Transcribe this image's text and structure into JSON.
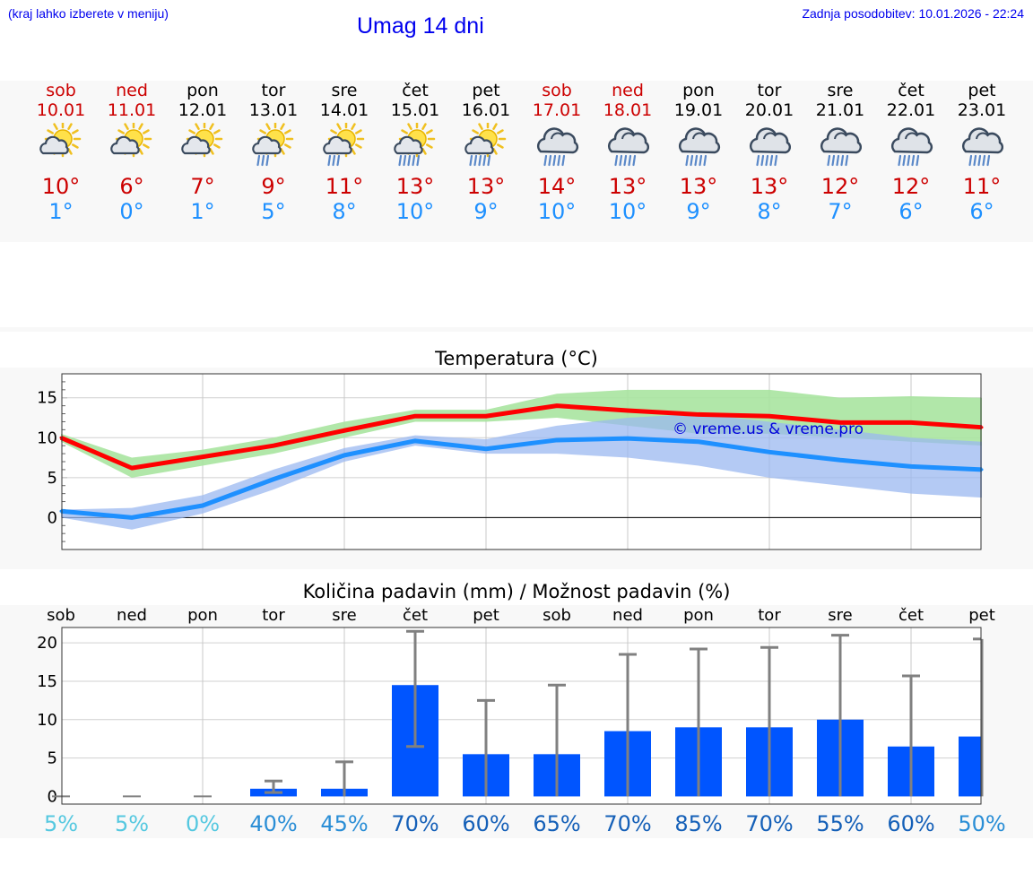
{
  "header": {
    "menu_hint": "(kraj lahko izberete v meniju)",
    "title": "Umag 14 dni",
    "last_update": "Zadnja posodobitev: 10.01.2026 - 22:24"
  },
  "forecast": [
    {
      "day": "sob",
      "date": "10.01",
      "icon": "sun-cloud-icon",
      "tmax": "10°",
      "tmin": "1°",
      "weekend": true
    },
    {
      "day": "ned",
      "date": "11.01",
      "icon": "sun-cloud-icon",
      "tmax": "6°",
      "tmin": "0°",
      "weekend": true
    },
    {
      "day": "pon",
      "date": "12.01",
      "icon": "sun-cloud-icon",
      "tmax": "7°",
      "tmin": "1°",
      "weekend": false
    },
    {
      "day": "tor",
      "date": "13.01",
      "icon": "sun-rain-icon",
      "tmax": "9°",
      "tmin": "5°",
      "weekend": false
    },
    {
      "day": "sre",
      "date": "14.01",
      "icon": "sun-rain-icon",
      "tmax": "11°",
      "tmin": "8°",
      "weekend": false
    },
    {
      "day": "čet",
      "date": "15.01",
      "icon": "sun-heavy-rain-icon",
      "tmax": "13°",
      "tmin": "10°",
      "weekend": false
    },
    {
      "day": "pet",
      "date": "16.01",
      "icon": "sun-heavy-rain-icon",
      "tmax": "13°",
      "tmin": "9°",
      "weekend": false
    },
    {
      "day": "sob",
      "date": "17.01",
      "icon": "rain-cloud-icon",
      "tmax": "14°",
      "tmin": "10°",
      "weekend": true
    },
    {
      "day": "ned",
      "date": "18.01",
      "icon": "rain-cloud-icon",
      "tmax": "13°",
      "tmin": "10°",
      "weekend": true
    },
    {
      "day": "pon",
      "date": "19.01",
      "icon": "rain-cloud-icon",
      "tmax": "13°",
      "tmin": "9°",
      "weekend": false
    },
    {
      "day": "tor",
      "date": "20.01",
      "icon": "rain-cloud-icon",
      "tmax": "13°",
      "tmin": "8°",
      "weekend": false
    },
    {
      "day": "sre",
      "date": "21.01",
      "icon": "rain-cloud-icon",
      "tmax": "12°",
      "tmin": "7°",
      "weekend": false
    },
    {
      "day": "čet",
      "date": "22.01",
      "icon": "rain-cloud-icon",
      "tmax": "12°",
      "tmin": "6°",
      "weekend": false
    },
    {
      "day": "pet",
      "date": "23.01",
      "icon": "rain-cloud-icon",
      "tmax": "11°",
      "tmin": "6°",
      "weekend": false
    }
  ],
  "chart_data": [
    {
      "type": "line",
      "title": "Temperatura (°C)",
      "ylim": [
        -4,
        18
      ],
      "yticks": [
        "15",
        "10",
        "5",
        "0"
      ],
      "watermark": "© vreme.us & vreme.pro",
      "series": [
        {
          "name": "max",
          "color": "#ff0000",
          "values": [
            10,
            6.2,
            7.6,
            9,
            10.9,
            12.7,
            12.7,
            14,
            13.4,
            12.9,
            12.7,
            11.9,
            11.9,
            11.3
          ]
        },
        {
          "name": "min",
          "color": "#1e90ff",
          "values": [
            0.8,
            0,
            1.5,
            4.8,
            7.8,
            9.6,
            8.6,
            9.7,
            9.9,
            9.5,
            8.2,
            7.2,
            6.4,
            6
          ]
        }
      ],
      "bands": [
        {
          "name": "max-range",
          "color": "#a8e4a0",
          "low": [
            9.5,
            5,
            6.5,
            8,
            10,
            12,
            12,
            12.5,
            11.5,
            10.5,
            10.5,
            10,
            9.5,
            9
          ],
          "high": [
            10.5,
            7.5,
            8.5,
            10,
            12,
            13.5,
            13.5,
            15.5,
            16,
            16,
            16,
            15,
            15.2,
            15
          ]
        },
        {
          "name": "min-range",
          "color": "#9bb8f0",
          "low": [
            0,
            -1.5,
            0.5,
            3.5,
            7,
            9,
            8,
            8,
            7.5,
            6.5,
            5,
            4,
            3,
            2.5
          ],
          "high": [
            1,
            1.2,
            2.8,
            6,
            8.7,
            10.3,
            9.8,
            11.5,
            12.5,
            13,
            12,
            11,
            10,
            9.5
          ]
        }
      ]
    },
    {
      "type": "bar",
      "title": "Količina padavin (mm) / Možnost padavin (%)",
      "categories": [
        "sob",
        "ned",
        "pon",
        "tor",
        "sre",
        "čet",
        "pet",
        "sob",
        "ned",
        "pon",
        "tor",
        "sre",
        "čet",
        "pet"
      ],
      "ylim": [
        -1,
        22
      ],
      "yticks": [
        "20",
        "15",
        "10",
        "5",
        "0"
      ],
      "values": [
        0,
        0,
        0,
        1,
        1,
        14.5,
        5.5,
        5.5,
        8.5,
        9,
        9,
        10,
        6.5,
        7.8
      ],
      "error_low": [
        0,
        0,
        0,
        0.5,
        0,
        6.5,
        0,
        0,
        0,
        0,
        0,
        0,
        0,
        0
      ],
      "error_high": [
        0,
        0,
        0,
        2,
        4.5,
        21.5,
        12.5,
        14.5,
        18.5,
        19.2,
        19.4,
        21,
        15.7,
        20.5
      ],
      "chance": [
        "5%",
        "5%",
        "0%",
        "40%",
        "45%",
        "70%",
        "60%",
        "65%",
        "70%",
        "85%",
        "70%",
        "55%",
        "60%",
        "50%"
      ],
      "chance_colors": [
        "#55c8e0",
        "#55c8e0",
        "#55c8e0",
        "#2a8ed6",
        "#2a8ed6",
        "#1560b8",
        "#1560b8",
        "#1560b8",
        "#1560b8",
        "#1560b8",
        "#1560b8",
        "#1560b8",
        "#1560b8",
        "#2a8ed6"
      ],
      "bar_color": "#0055ff",
      "error_color": "#808080"
    }
  ]
}
